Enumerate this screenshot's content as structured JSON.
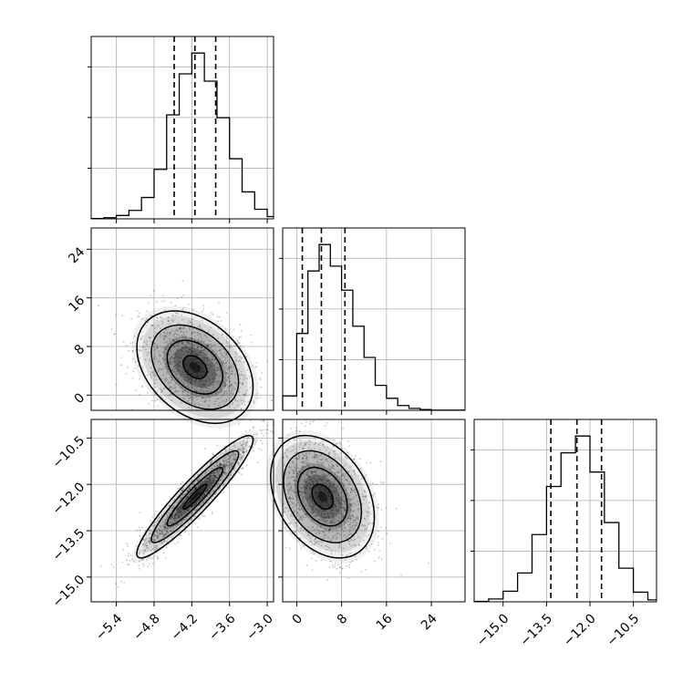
{
  "chart_data": [
    {
      "type": "histogram",
      "panel": "hist-0",
      "parameter_index": 0,
      "range": [
        -5.8,
        -2.9
      ],
      "bins": [
        -5.8,
        -5.6,
        -5.4,
        -5.2,
        -5.0,
        -4.8,
        -4.6,
        -4.4,
        -4.2,
        -4.0,
        -3.8,
        -3.6,
        -3.4,
        -3.2,
        -3.0,
        -2.9
      ],
      "counts": [
        5,
        20,
        60,
        150,
        380,
        880,
        1850,
        2580,
        2950,
        2450,
        1800,
        1070,
        480,
        170,
        40
      ],
      "quantiles": [
        -4.48,
        -4.15,
        -3.82
      ],
      "grid": true
    },
    {
      "type": "histogram",
      "panel": "hist-1",
      "parameter_index": 1,
      "range": [
        -2.5,
        30
      ],
      "bins": [
        -2.5,
        0,
        2,
        4,
        6,
        8,
        10,
        12,
        14,
        16,
        18,
        20,
        22,
        24,
        30
      ],
      "counts": [
        300,
        1600,
        2900,
        3450,
        3000,
        2500,
        1750,
        1100,
        520,
        250,
        100,
        40,
        15,
        5
      ],
      "quantiles": [
        1.0,
        4.4,
        8.6
      ],
      "grid": true
    },
    {
      "type": "histogram",
      "panel": "hist-2",
      "parameter_index": 2,
      "range": [
        -16.0,
        -9.7
      ],
      "bins": [
        -16.0,
        -15.5,
        -15.0,
        -14.5,
        -14.0,
        -13.5,
        -13.0,
        -12.5,
        -12.0,
        -11.5,
        -11.0,
        -10.5,
        -10.0,
        -9.7
      ],
      "counts": [
        10,
        60,
        220,
        600,
        1400,
        2400,
        3100,
        3450,
        2700,
        1650,
        700,
        200,
        40
      ],
      "quantiles": [
        -13.35,
        -12.45,
        -11.6
      ],
      "grid": true
    },
    {
      "type": "scatter",
      "panel": "joint-1-0",
      "x_parameter": 0,
      "y_parameter": 1,
      "xlim": [
        -5.8,
        -2.9
      ],
      "ylim": [
        -2.5,
        27.5
      ],
      "mean": [
        -4.15,
        4.6
      ],
      "std": [
        0.42,
        4.2
      ],
      "correlation": -0.35,
      "contours": true,
      "grid": true
    },
    {
      "type": "scatter",
      "panel": "joint-2-0",
      "x_parameter": 0,
      "y_parameter": 2,
      "xlim": [
        -5.8,
        -2.9
      ],
      "ylim": [
        -15.8,
        -9.9
      ],
      "mean": [
        -4.15,
        -12.4
      ],
      "std": [
        0.42,
        0.9
      ],
      "correlation": 0.93,
      "contours": true,
      "grid": true
    },
    {
      "type": "scatter",
      "panel": "joint-2-1",
      "x_parameter": 1,
      "y_parameter": 2,
      "xlim": [
        -2.5,
        30
      ],
      "ylim": [
        -15.8,
        -9.9
      ],
      "mean": [
        4.6,
        -12.4
      ],
      "std": [
        4.2,
        0.9
      ],
      "correlation": -0.33,
      "contours": true,
      "grid": true
    }
  ],
  "axes": {
    "param0": {
      "ticks": [
        -5.4,
        -4.8,
        -4.2,
        -3.6,
        -3.0
      ],
      "tick_labels": [
        "−5.4",
        "−4.8",
        "−4.2",
        "−3.6",
        "−3.0"
      ]
    },
    "param1": {
      "ticks": [
        0,
        8,
        16,
        24
      ],
      "tick_labels": [
        "0",
        "8",
        "16",
        "24"
      ]
    },
    "param2": {
      "ticks": [
        -15.0,
        -13.5,
        -12.0,
        -10.5
      ],
      "tick_labels": [
        "−15.0",
        "−13.5",
        "−12.0",
        "−10.5"
      ]
    }
  },
  "colors": {
    "line": "#000000",
    "grid": "#b0b0b0",
    "fill": "#000000"
  }
}
